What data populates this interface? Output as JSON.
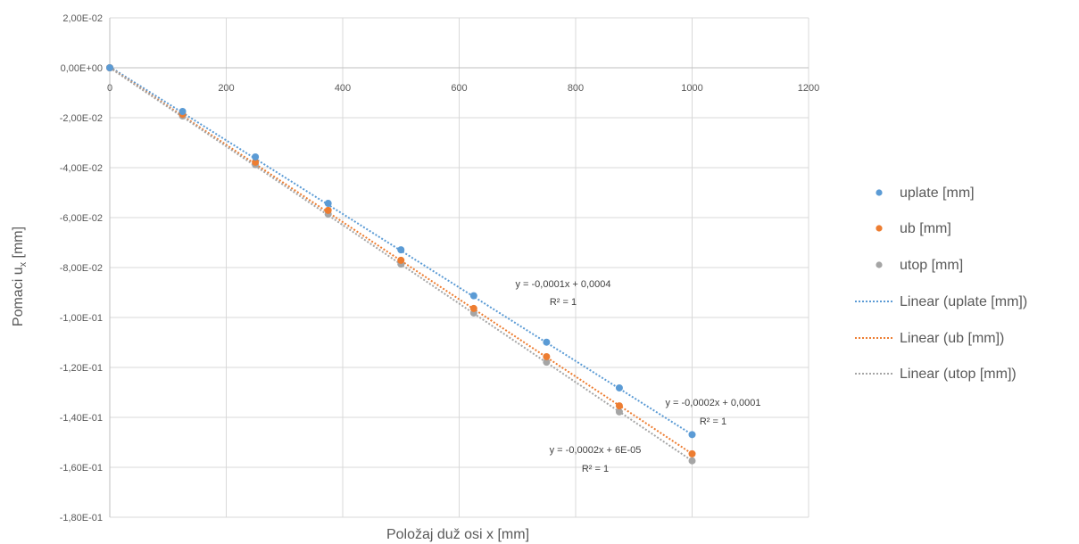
{
  "chart_data": {
    "type": "scatter",
    "xlabel": "Položaj duž osi x [mm]",
    "ylabel_main": "Pomaci u",
    "ylabel_sub": "x",
    "ylabel_unit": " [mm]",
    "xlim": [
      0,
      1200
    ],
    "ylim": [
      -0.18,
      0.02
    ],
    "x_ticks": [
      {
        "value": 0,
        "label": "0"
      },
      {
        "value": 200,
        "label": "200"
      },
      {
        "value": 400,
        "label": "400"
      },
      {
        "value": 600,
        "label": "600"
      },
      {
        "value": 800,
        "label": "800"
      },
      {
        "value": 1000,
        "label": "1000"
      },
      {
        "value": 1200,
        "label": "1200"
      }
    ],
    "y_ticks": [
      {
        "value": 0.02,
        "label": "2,00E-02"
      },
      {
        "value": 0.0,
        "label": "0,00E+00"
      },
      {
        "value": -0.02,
        "label": "-2,00E-02"
      },
      {
        "value": -0.04,
        "label": "-4,00E-02"
      },
      {
        "value": -0.06,
        "label": "-6,00E-02"
      },
      {
        "value": -0.08,
        "label": "-8,00E-02"
      },
      {
        "value": -0.1,
        "label": "-1,00E-01"
      },
      {
        "value": -0.12,
        "label": "-1,20E-01"
      },
      {
        "value": -0.14,
        "label": "-1,40E-01"
      },
      {
        "value": -0.16,
        "label": "-1,60E-01"
      },
      {
        "value": -0.18,
        "label": "-1,80E-01"
      }
    ],
    "grid": true,
    "legend_position": "right",
    "series": [
      {
        "name": "uplate [mm]",
        "color": "#5b9bd5",
        "x": [
          0,
          125,
          250,
          375,
          500,
          625,
          750,
          875,
          1000
        ],
        "y": [
          0.0,
          -0.0175,
          -0.0357,
          -0.0543,
          -0.0729,
          -0.0913,
          -0.1099,
          -0.1282,
          -0.1469
        ]
      },
      {
        "name": "ub [mm]",
        "color": "#ed7d31",
        "x": [
          0,
          125,
          250,
          375,
          500,
          625,
          750,
          875,
          1000
        ],
        "y": [
          0.0,
          -0.0186,
          -0.0378,
          -0.0571,
          -0.0771,
          -0.0964,
          -0.1157,
          -0.1354,
          -0.1546
        ]
      },
      {
        "name": "utop [mm]",
        "color": "#a5a5a5",
        "x": [
          0,
          125,
          250,
          375,
          500,
          625,
          750,
          875,
          1000
        ],
        "y": [
          0.0,
          -0.0193,
          -0.0388,
          -0.0586,
          -0.0786,
          -0.0982,
          -0.1179,
          -0.1378,
          -0.1574
        ]
      }
    ],
    "trendlines": [
      {
        "name": "Linear (uplate [mm])",
        "color": "#5b9bd5",
        "x": [
          0,
          1000
        ],
        "y": [
          0.0004,
          -0.1469
        ]
      },
      {
        "name": "Linear (ub [mm])",
        "color": "#ed7d31",
        "x": [
          0,
          1000
        ],
        "y": [
          0.0001,
          -0.1546
        ]
      },
      {
        "name": "Linear (utop [mm])",
        "color": "#a5a5a5",
        "x": [
          0,
          1000
        ],
        "y": [
          0.0,
          -0.1574
        ]
      }
    ],
    "annotations": [
      {
        "equation": "y = -0,0001x + 0,0004",
        "r2": "R² = 1"
      },
      {
        "equation": "y = -0,0002x + 0,0001",
        "r2": "R² = 1"
      },
      {
        "equation": "y = -0,0002x + 6E-05",
        "r2": "R² = 1"
      }
    ]
  }
}
